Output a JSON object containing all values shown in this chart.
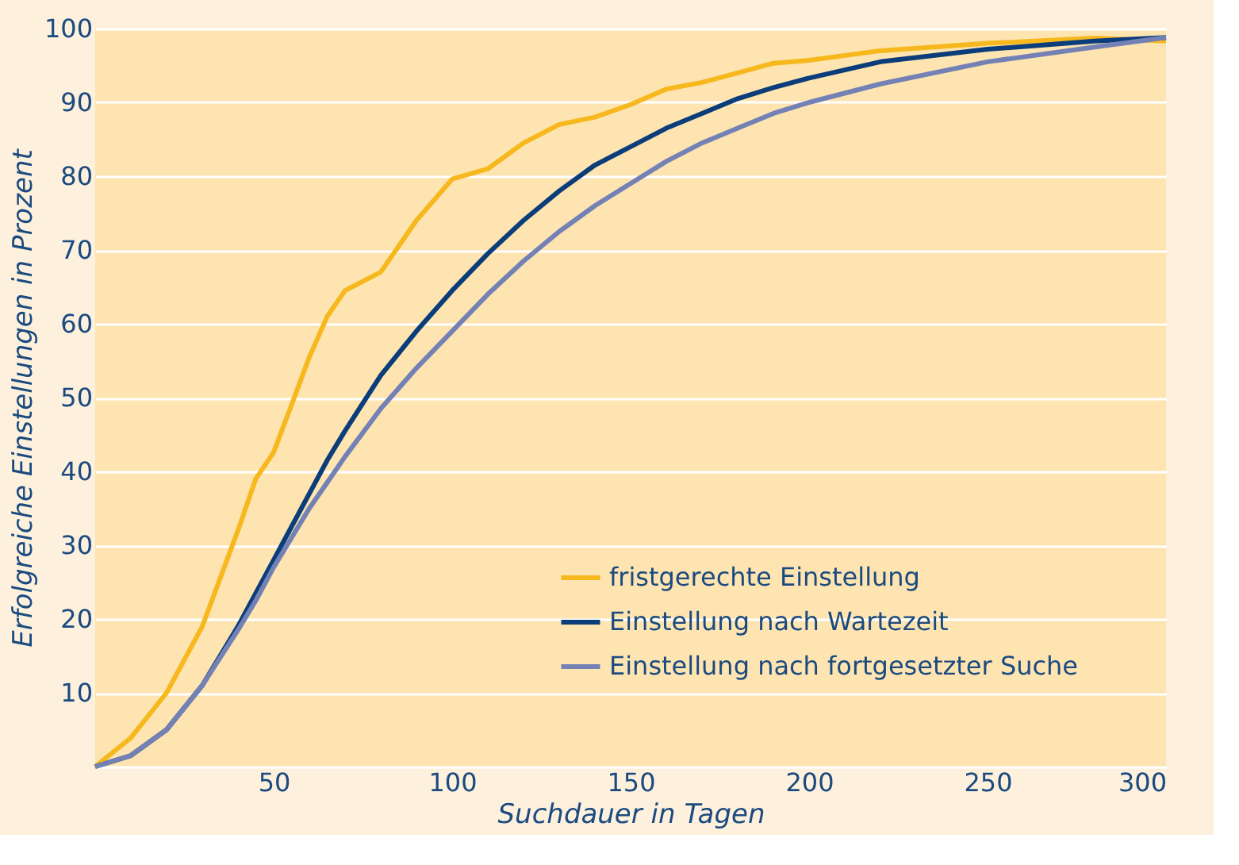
{
  "chart_data": {
    "type": "line",
    "xlabel": "Suchdauer in Tagen",
    "ylabel": "Erfolgreiche Einstellungen in Prozent",
    "x": [
      0,
      10,
      20,
      30,
      40,
      45,
      50,
      55,
      60,
      65,
      70,
      80,
      90,
      100,
      110,
      120,
      130,
      140,
      150,
      160,
      170,
      180,
      190,
      200,
      220,
      250,
      280,
      300
    ],
    "series": [
      {
        "name": "fristgerechte Einstellung",
        "color": "#f7b81e",
        "values": [
          0,
          3.9,
          10,
          19,
          32,
          39,
          42.6,
          49,
          55.5,
          61,
          64.5,
          67,
          74,
          79.6,
          81,
          84.5,
          87,
          88,
          89.7,
          91.8,
          92.7,
          94,
          95.3,
          95.7,
          97,
          98,
          98.7,
          98.3
        ]
      },
      {
        "name": "Einstellung nach Wartezeit",
        "color": "#0b3d7a",
        "values": [
          0,
          1.5,
          5,
          11,
          19,
          23.5,
          28,
          32.5,
          37,
          41.5,
          45.5,
          53,
          59,
          64.5,
          69.5,
          74,
          78,
          81.5,
          84,
          86.5,
          88.5,
          90.5,
          92,
          93.3,
          95.5,
          97.2,
          98.3,
          98.8
        ]
      },
      {
        "name": "Einstellung nach fortgesetzter Suche",
        "color": "#7381b5",
        "values": [
          0,
          1.5,
          5,
          11,
          18.5,
          22.5,
          27,
          31,
          35,
          38.5,
          42,
          48.5,
          54,
          59,
          64,
          68.5,
          72.5,
          76,
          79,
          82,
          84.5,
          86.5,
          88.5,
          90,
          92.5,
          95.5,
          97.5,
          98.8
        ]
      }
    ],
    "xlim": [
      0,
      300
    ],
    "xticks": [
      50,
      100,
      150,
      200,
      250,
      300
    ],
    "ylim": [
      0,
      100
    ],
    "yticks": [
      {
        "value": 0,
        "label": null
      },
      10,
      20,
      30,
      40,
      50,
      60,
      70,
      80,
      90,
      100
    ],
    "grid": "y",
    "legend": "bottom right",
    "marker": "none",
    "line_style": "solid"
  }
}
